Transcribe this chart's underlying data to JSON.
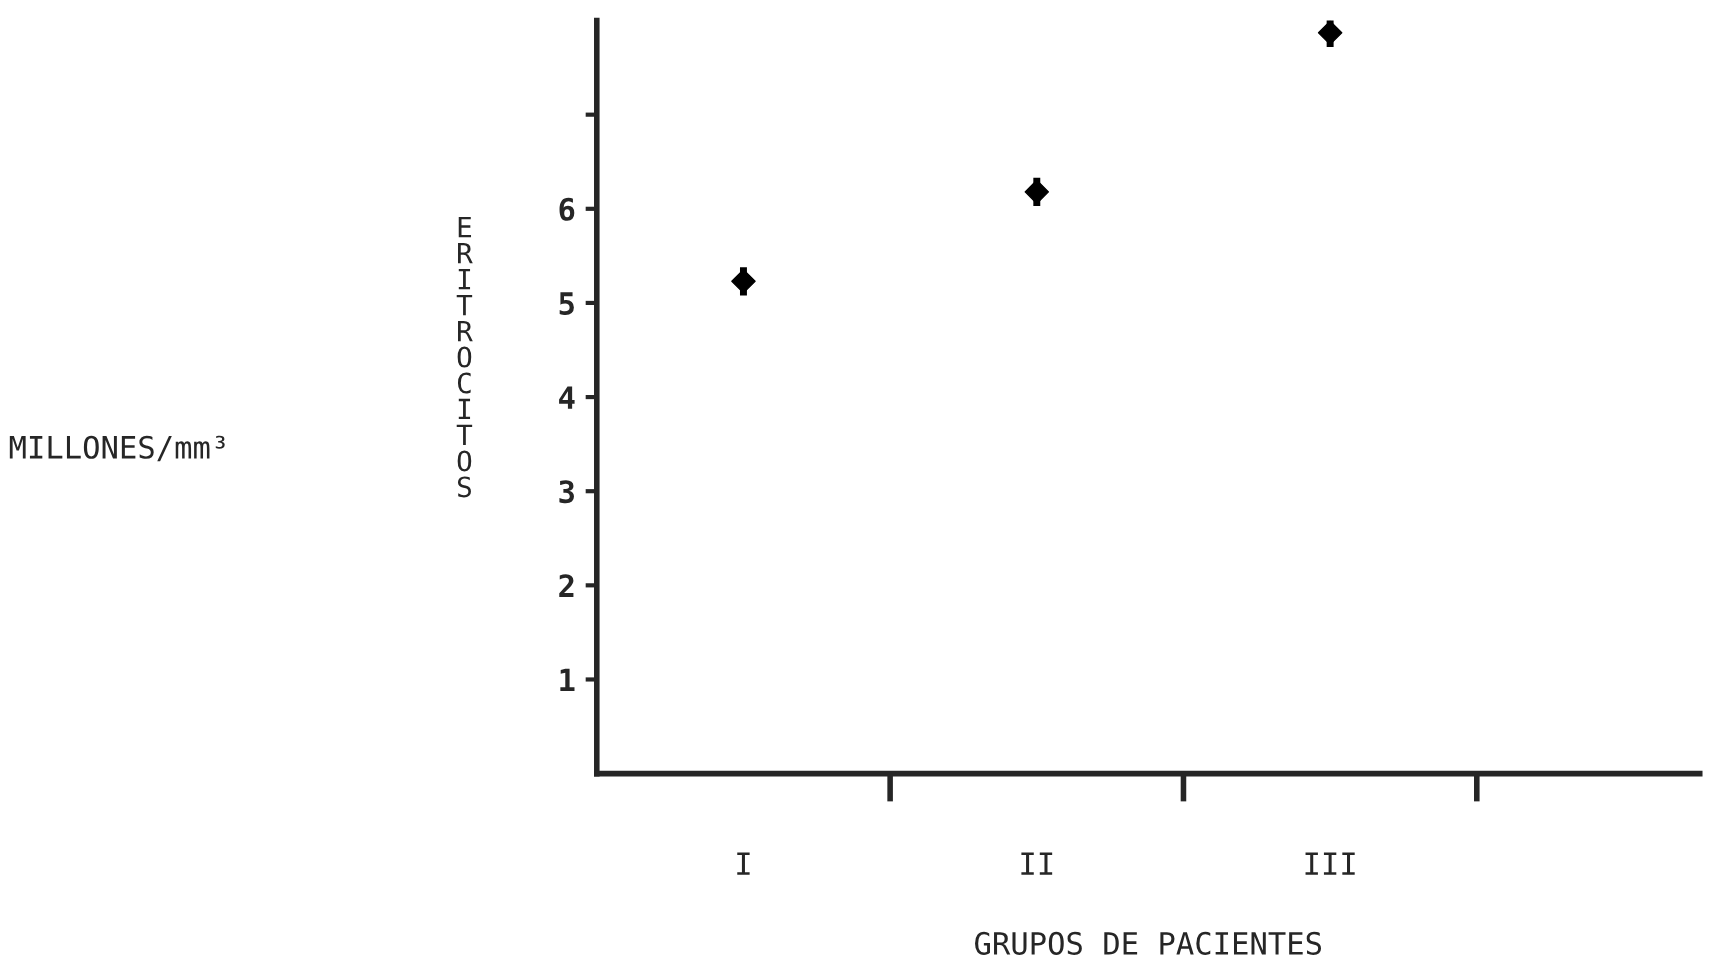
{
  "chart_data": {
    "type": "scatter",
    "xlabel": "GRUPOS DE PACIENTES",
    "ylabel": "ERITROCITOS",
    "annotations": [
      "MILLONES/mm³"
    ],
    "categories": [
      "I",
      "II",
      "III"
    ],
    "series": [
      {
        "color": "#000000",
        "values": [
          5.23,
          6.18,
          7.87
        ],
        "errors": [
          0.15,
          0.15,
          0.15
        ]
      }
    ],
    "ylim": [
      0,
      8
    ],
    "yticks": [
      1,
      2,
      3,
      4,
      5,
      6,
      {
        "value": 7,
        "label": null
      }
    ],
    "marker": "diamond",
    "grid": false,
    "legend": false
  }
}
